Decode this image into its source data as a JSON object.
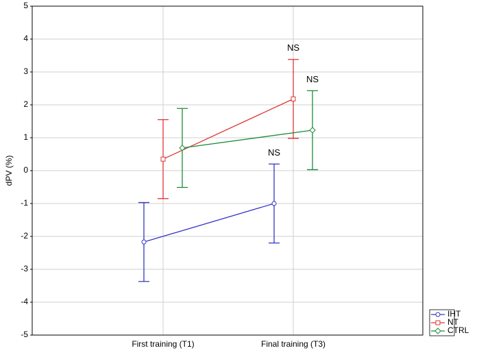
{
  "chart_data": {
    "type": "line",
    "y_label": "dPV (%)",
    "categories": [
      "First training (T1)",
      "Final training (T3)"
    ],
    "ylim": [
      -5,
      5
    ],
    "yticks": [
      -5,
      -4,
      -3,
      -2,
      -1,
      0,
      1,
      2,
      3,
      4,
      5
    ],
    "grid": true,
    "legend": "lower right",
    "series": [
      {
        "name": "IHT",
        "color": "#3434c8",
        "marker": "circle",
        "values": [
          -2.17,
          -1.0
        ],
        "errors": [
          1.2,
          1.2
        ],
        "annotations": [
          null,
          "NS"
        ]
      },
      {
        "name": "NT",
        "color": "#e03434",
        "marker": "square",
        "values": [
          0.35,
          2.18
        ],
        "errors": [
          1.2,
          1.2
        ],
        "annotations": [
          null,
          "NS"
        ]
      },
      {
        "name": "CTRL",
        "color": "#1a8a3a",
        "marker": "diamond",
        "values": [
          0.69,
          1.23
        ],
        "errors": [
          1.2,
          1.2
        ],
        "annotations": [
          null,
          "NS"
        ]
      }
    ]
  }
}
